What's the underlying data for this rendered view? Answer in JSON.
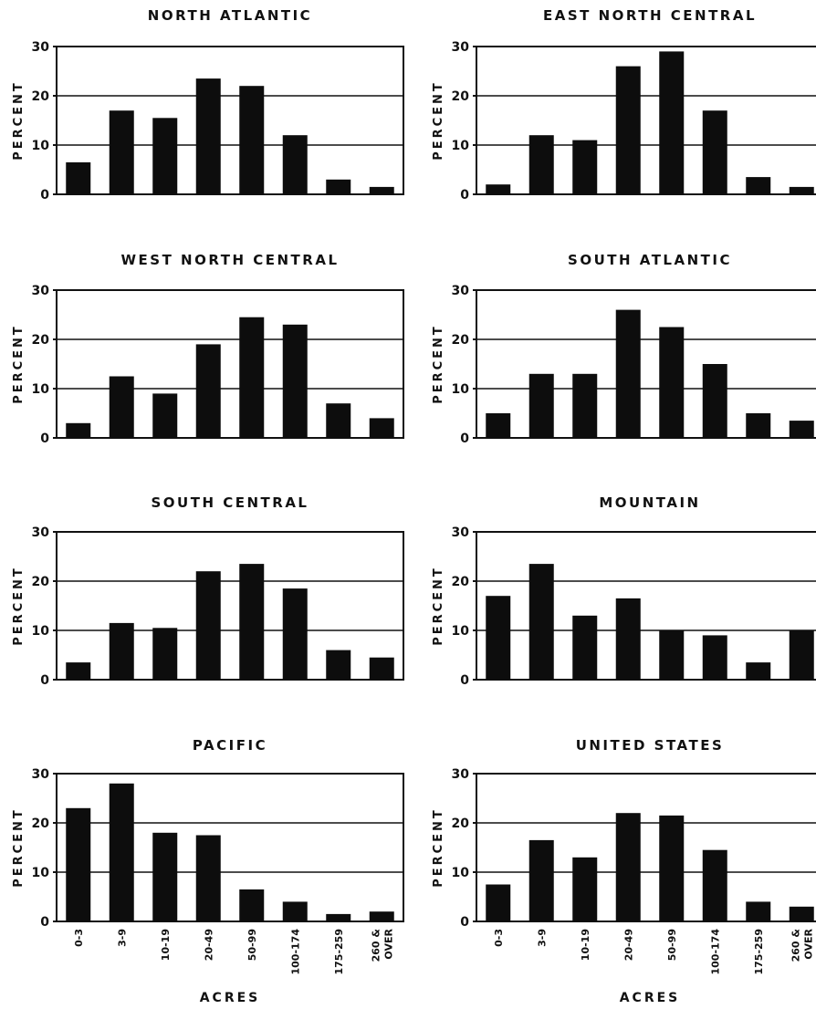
{
  "chart_data": [
    {
      "type": "bar",
      "title": "NORTH ATLANTIC",
      "ylabel": "PERCENT",
      "xlabel": "",
      "categories": [
        "0-3",
        "3-9",
        "10-19",
        "20-49",
        "50-99",
        "100-174",
        "175-259",
        "260 & OVER"
      ],
      "values": [
        6.5,
        17,
        15.5,
        23.5,
        22,
        12,
        3,
        1.5
      ],
      "yticks": [
        0,
        10,
        20,
        30
      ],
      "ylim": [
        0,
        30
      ],
      "grid": "horizontal at 10 and 20"
    },
    {
      "type": "bar",
      "title": "EAST NORTH CENTRAL",
      "ylabel": "PERCENT",
      "xlabel": "",
      "categories": [
        "0-3",
        "3-9",
        "10-19",
        "20-49",
        "50-99",
        "100-174",
        "175-259",
        "260 & OVER"
      ],
      "values": [
        2,
        12,
        11,
        26,
        29,
        17,
        3.5,
        1.5
      ],
      "yticks": [
        0,
        10,
        20,
        30
      ],
      "ylim": [
        0,
        30
      ],
      "grid": "horizontal at 10 and 20"
    },
    {
      "type": "bar",
      "title": "WEST NORTH CENTRAL",
      "ylabel": "PERCENT",
      "xlabel": "",
      "categories": [
        "0-3",
        "3-9",
        "10-19",
        "20-49",
        "50-99",
        "100-174",
        "175-259",
        "260 & OVER"
      ],
      "values": [
        3,
        12.5,
        9,
        19,
        24.5,
        23,
        7,
        4
      ],
      "yticks": [
        0,
        10,
        20,
        30
      ],
      "ylim": [
        0,
        30
      ],
      "grid": "horizontal at 10 and 20"
    },
    {
      "type": "bar",
      "title": "SOUTH ATLANTIC",
      "ylabel": "PERCENT",
      "xlabel": "",
      "categories": [
        "0-3",
        "3-9",
        "10-19",
        "20-49",
        "50-99",
        "100-174",
        "175-259",
        "260 & OVER"
      ],
      "values": [
        5,
        13,
        13,
        26,
        22.5,
        15,
        5,
        3.5
      ],
      "yticks": [
        0,
        10,
        20,
        30
      ],
      "ylim": [
        0,
        30
      ],
      "grid": "horizontal at 10 and 20"
    },
    {
      "type": "bar",
      "title": "SOUTH CENTRAL",
      "ylabel": "PERCENT",
      "xlabel": "",
      "categories": [
        "0-3",
        "3-9",
        "10-19",
        "20-49",
        "50-99",
        "100-174",
        "175-259",
        "260 & OVER"
      ],
      "values": [
        3.5,
        11.5,
        10.5,
        22,
        23.5,
        18.5,
        6,
        4.5
      ],
      "yticks": [
        0,
        10,
        20,
        30
      ],
      "ylim": [
        0,
        30
      ],
      "grid": "horizontal at 10 and 20"
    },
    {
      "type": "bar",
      "title": "MOUNTAIN",
      "ylabel": "PERCENT",
      "xlabel": "",
      "categories": [
        "0-3",
        "3-9",
        "10-19",
        "20-49",
        "50-99",
        "100-174",
        "175-259",
        "260 & OVER"
      ],
      "values": [
        17,
        23.5,
        13,
        16.5,
        10,
        9,
        3.5,
        10
      ],
      "yticks": [
        0,
        10,
        20,
        30
      ],
      "ylim": [
        0,
        30
      ],
      "grid": "horizontal at 10 and 20"
    },
    {
      "type": "bar",
      "title": "PACIFIC",
      "ylabel": "PERCENT",
      "xlabel": "ACRES",
      "categories": [
        "0-3",
        "3-9",
        "10-19",
        "20-49",
        "50-99",
        "100-174",
        "175-259",
        "260 & OVER"
      ],
      "values": [
        23,
        28,
        18,
        17.5,
        6.5,
        4,
        1.5,
        2
      ],
      "yticks": [
        0,
        10,
        20,
        30
      ],
      "ylim": [
        0,
        30
      ],
      "grid": "horizontal at 10 and 20"
    },
    {
      "type": "bar",
      "title": "UNITED STATES",
      "ylabel": "PERCENT",
      "xlabel": "ACRES",
      "categories": [
        "0-3",
        "3-9",
        "10-19",
        "20-49",
        "50-99",
        "100-174",
        "175-259",
        "260 & OVER"
      ],
      "values": [
        7.5,
        16.5,
        13,
        22,
        21.5,
        14.5,
        4,
        3
      ],
      "yticks": [
        0,
        10,
        20,
        30
      ],
      "ylim": [
        0,
        30
      ],
      "grid": "horizontal at 10 and 20"
    }
  ],
  "colors": {
    "bar": "#0d0d0d",
    "axis": "#111111",
    "background": "#ffffff"
  }
}
